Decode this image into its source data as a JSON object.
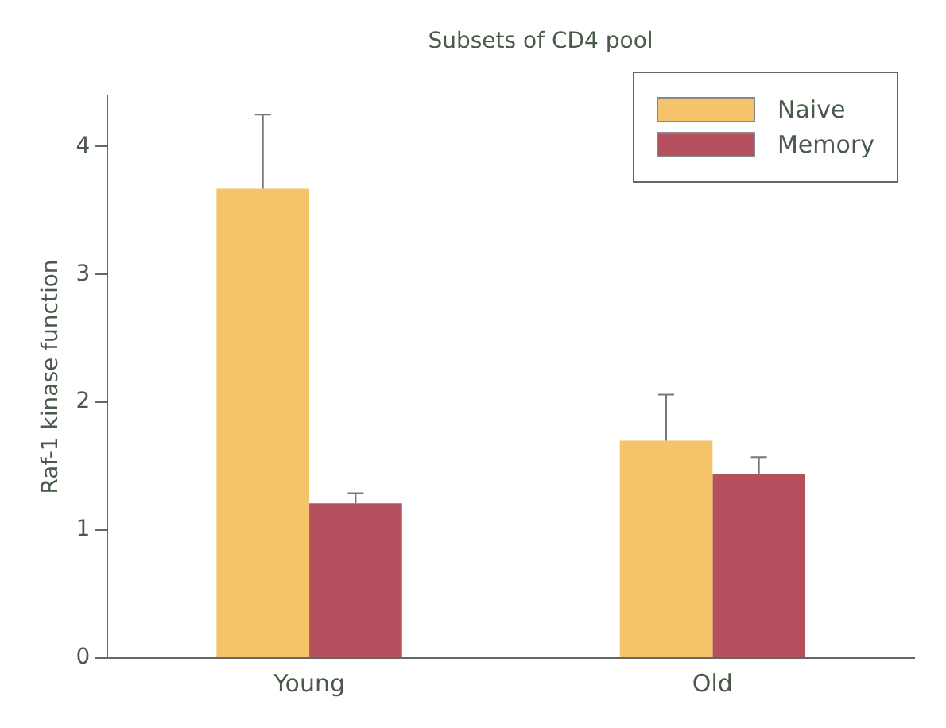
{
  "chart_data": {
    "type": "bar",
    "title": "Subsets of CD4 pool",
    "ylabel": "Raf-1 kinase function",
    "categories": [
      "Young",
      "Old"
    ],
    "series": [
      {
        "name": "Naive",
        "color": "#f5c46a",
        "values": [
          3.67,
          1.7
        ],
        "errors": [
          [
            3.67,
            4.25
          ],
          [
            1.7,
            2.06
          ]
        ]
      },
      {
        "name": "Memory",
        "color": "#b5505e",
        "values": [
          1.21,
          1.44
        ],
        "errors": [
          [
            1.21,
            1.29
          ],
          [
            1.44,
            1.57
          ]
        ]
      }
    ],
    "ylim": [
      0,
      4.4
    ],
    "yticks": [
      0,
      1,
      2,
      3,
      4
    ],
    "grid": false,
    "legend": "top right"
  }
}
